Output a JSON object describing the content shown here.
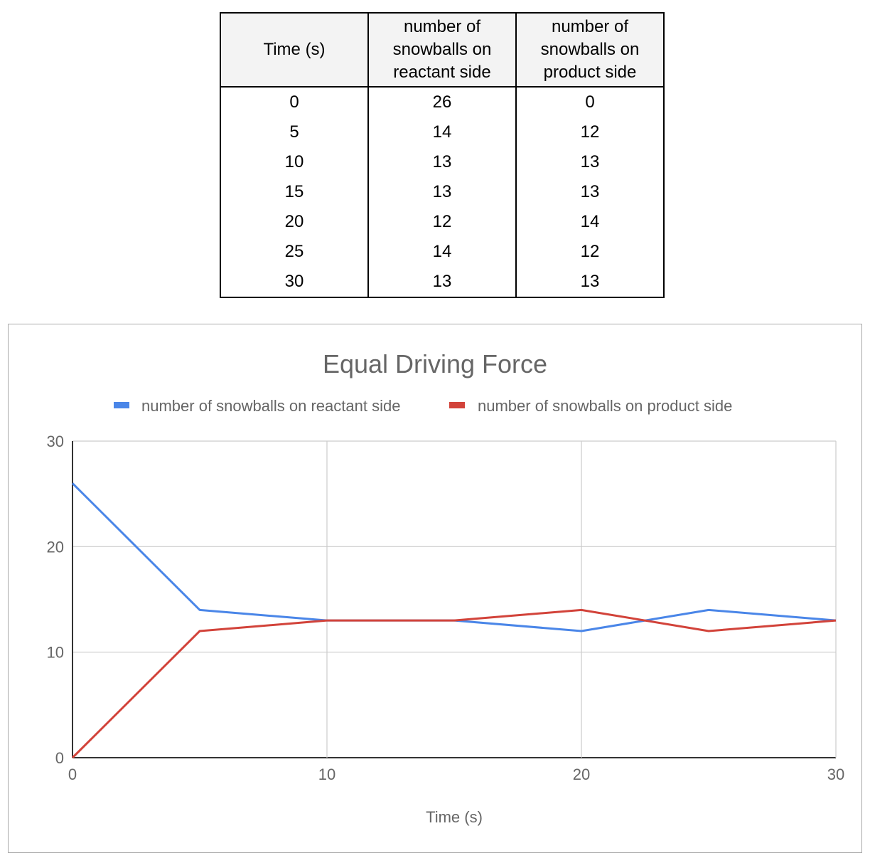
{
  "table": {
    "headers": [
      "Time (s)",
      "number of snowballs on reactant side",
      "number of snowballs on product side"
    ],
    "rows": [
      [
        "0",
        "26",
        "0"
      ],
      [
        "5",
        "14",
        "12"
      ],
      [
        "10",
        "13",
        "13"
      ],
      [
        "15",
        "13",
        "13"
      ],
      [
        "20",
        "12",
        "14"
      ],
      [
        "25",
        "14",
        "12"
      ],
      [
        "30",
        "13",
        "13"
      ]
    ]
  },
  "chart_data": {
    "type": "line",
    "title": "Equal Driving Force",
    "xlabel": "Time (s)",
    "ylabel": "",
    "x": [
      0,
      5,
      10,
      15,
      20,
      25,
      30
    ],
    "series": [
      {
        "name": "number of snowballs on reactant side",
        "color": "#4a86e8",
        "values": [
          26,
          14,
          13,
          13,
          12,
          14,
          13
        ]
      },
      {
        "name": "number of snowballs on product side",
        "color": "#d2433a",
        "values": [
          0,
          12,
          13,
          13,
          14,
          12,
          13
        ]
      }
    ],
    "xlim": [
      0,
      30
    ],
    "ylim": [
      0,
      30
    ],
    "xticks": [
      "0",
      "10",
      "20",
      "30"
    ],
    "yticks": [
      "0",
      "10",
      "20",
      "30"
    ],
    "grid": true,
    "legend": "top"
  }
}
